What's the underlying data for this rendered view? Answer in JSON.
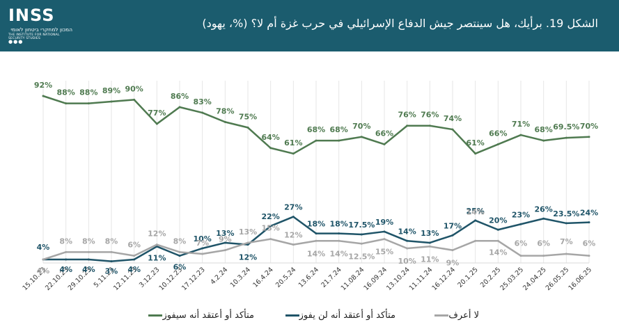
{
  "header": {
    "logo_text": "INSS",
    "logo_subtitle_he": "המכון למחקרי ביטחון לאומי",
    "logo_subtitle_en": "THE INSTITUTE FOR NATIONAL SECURITY STUDIES",
    "title": "الشكل 19. برأيك، هل سينتصر جيش الدفاع الإسرائيلي في حرب غزة أم لا؟ (%، يهود)",
    "background": "#1b5c6e"
  },
  "chart_data": {
    "type": "line",
    "categories": [
      "15.10.23",
      "22.10.23",
      "29.10.23",
      "5.11.23",
      "12.11.23",
      "3.12.23",
      "10.12.23",
      "17.12.23",
      "4.2.24",
      "10.3.24",
      "16.4.24",
      "20.5.24",
      "13.6.24",
      "21.7.24",
      "11.08.24",
      "16.09.24",
      "13.10.24",
      "11.11.24",
      "16.12.24",
      "20.1.25",
      "20.2.25",
      "25.03.25",
      "24.04.25",
      "26.05.25",
      "16.06.25"
    ],
    "ylim": [
      0,
      100
    ],
    "grid": "vertical",
    "legend_position": "bottom",
    "series": [
      {
        "name": "متأكد أو أعتقد أنه سيفوز",
        "color": "#4f7a50",
        "values": [
          92,
          88,
          88,
          89,
          90,
          77,
          86,
          83,
          78,
          75,
          64,
          61,
          68,
          68,
          70,
          66,
          76,
          76,
          74,
          61,
          66,
          71,
          68,
          69.5,
          70
        ],
        "labels": [
          "92%",
          "88%",
          "88%",
          "89%",
          "90%",
          "77%",
          "86%",
          "83%",
          "78%",
          "75%",
          "64%",
          "61%",
          "68%",
          "68%",
          "70%",
          "66%",
          "76%",
          "76%",
          "74%",
          "61%",
          "66%",
          "71%",
          "68%",
          "69.5%",
          "70%"
        ]
      },
      {
        "name": "متأكد أو أعتقد أنه لن يفوز",
        "color": "#1f5468",
        "values": [
          4,
          4,
          4,
          3,
          4,
          11,
          6,
          10,
          13,
          12,
          22,
          27,
          18,
          18,
          17.5,
          19,
          14,
          13,
          17,
          25,
          20,
          23,
          26,
          23.5,
          24
        ],
        "labels": [
          "4%",
          "4%",
          "4%",
          "3%",
          "4%",
          "11%",
          "6%",
          "10%",
          "13%",
          "12%",
          "22%",
          "27%",
          "18%",
          "18%",
          "17.5%",
          "19%",
          "14%",
          "13%",
          "17%",
          "25%",
          "20%",
          "23%",
          "26%",
          "23.5%",
          "24%"
        ]
      },
      {
        "name": "لا أعرف",
        "color": "#a6a6a6",
        "values": [
          4,
          8,
          8,
          8,
          6,
          12,
          8,
          7,
          9,
          13,
          15,
          12,
          14,
          14,
          12.5,
          15,
          10,
          11,
          9,
          14,
          14,
          6,
          6,
          7,
          6
        ],
        "labels": [
          "4%",
          "8%",
          "8%",
          "8%",
          "6%",
          "12%",
          "8%",
          "7%",
          "9%",
          "13%",
          "15%",
          "12%",
          "14%",
          "14%",
          "12.5%",
          "15%",
          "10%",
          "11%",
          "9%",
          "14%",
          "14%",
          "6%",
          "6%",
          "7%",
          "6%"
        ]
      }
    ]
  }
}
